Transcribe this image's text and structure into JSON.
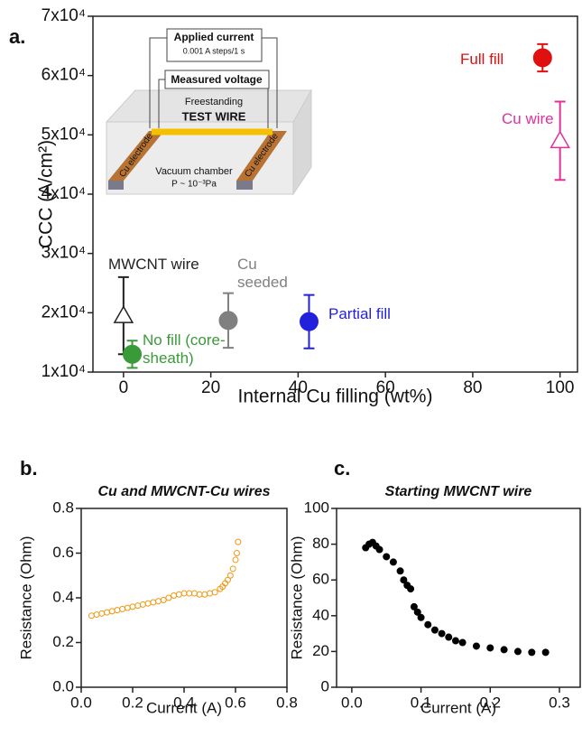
{
  "chart_data": [
    {
      "type": "scatter",
      "panel_label": "a.",
      "x_label": "Internal Cu filling (wt%)",
      "y_label": "CCC (A/cm²)",
      "xlim": [
        -7,
        104
      ],
      "xticks": [
        0,
        20,
        40,
        60,
        80,
        100
      ],
      "ylim": [
        10000,
        70000
      ],
      "yticks": [
        {
          "value": 10000,
          "label": "1x10⁴"
        },
        {
          "value": 20000,
          "label": "2x10⁴"
        },
        {
          "value": 30000,
          "label": "3x10⁴"
        },
        {
          "value": 40000,
          "label": "4x10⁴"
        },
        {
          "value": 50000,
          "label": "5x10⁴"
        },
        {
          "value": 60000,
          "label": "6x10⁴"
        },
        {
          "value": 70000,
          "label": "7x10⁴"
        }
      ],
      "series": [
        {
          "name": "MWCNT wire",
          "color": "#222222",
          "marker": "triangle-open",
          "x": [
            0
          ],
          "values": [
            19500
          ],
          "errors": [
            6500
          ]
        },
        {
          "name": "No fill (core-sheath)",
          "color": "#3a9a3a",
          "marker": "circle",
          "x": [
            2
          ],
          "values": [
            13000
          ],
          "errors": [
            2300
          ]
        },
        {
          "name": "Cu seeded",
          "color": "#808080",
          "marker": "circle",
          "x": [
            24
          ],
          "values": [
            18700
          ],
          "errors": [
            4600
          ]
        },
        {
          "name": "Partial fill",
          "color": "#2222dd",
          "marker": "circle",
          "x": [
            42.5
          ],
          "values": [
            18500
          ],
          "errors": [
            4500
          ]
        },
        {
          "name": "Full fill",
          "color": "#e01010",
          "marker": "circle",
          "x": [
            96
          ],
          "values": [
            63000
          ],
          "errors": [
            2300
          ]
        },
        {
          "name": "Cu wire",
          "color": "#e0309a",
          "marker": "triangle-open",
          "x": [
            100
          ],
          "values": [
            49000
          ],
          "errors": [
            6600
          ]
        }
      ],
      "inset": {
        "applied_current": "Applied current",
        "current_steps": "0.001 A steps/1 s",
        "measured_voltage": "Measured voltage",
        "freestanding": "Freestanding",
        "test_wire": "TEST WIRE",
        "left_electrode": "Cu electrode",
        "right_electrode": "Cu electrode",
        "vacuum_chamber": "Vacuum chamber",
        "pressure": "P ~ 10⁻³Pa"
      }
    },
    {
      "type": "scatter",
      "panel_label": "b.",
      "title": "Cu and MWCNT-Cu wires",
      "x_label": "Current (A)",
      "y_label": "Resistance (Ohm)",
      "xlim": [
        0,
        0.8
      ],
      "xticks": [
        {
          "value": 0,
          "label": "0.0"
        },
        0.2,
        0.4,
        0.6,
        0.8
      ],
      "ylim": [
        0,
        0.8
      ],
      "yticks": [
        {
          "value": 0,
          "label": "0.0"
        },
        0.2,
        0.4,
        0.6,
        0.8
      ],
      "series": [
        {
          "color": "#f0960f",
          "marker": "circle-open",
          "x": [
            0.04,
            0.06,
            0.08,
            0.1,
            0.12,
            0.14,
            0.16,
            0.18,
            0.2,
            0.22,
            0.24,
            0.26,
            0.28,
            0.3,
            0.32,
            0.34,
            0.36,
            0.38,
            0.4,
            0.42,
            0.44,
            0.46,
            0.48,
            0.5,
            0.52,
            0.54,
            0.55,
            0.56,
            0.57,
            0.58,
            0.59,
            0.6,
            0.605,
            0.61
          ],
          "values": [
            0.32,
            0.325,
            0.33,
            0.335,
            0.34,
            0.345,
            0.35,
            0.355,
            0.36,
            0.365,
            0.37,
            0.375,
            0.38,
            0.385,
            0.39,
            0.4,
            0.41,
            0.415,
            0.42,
            0.42,
            0.42,
            0.415,
            0.415,
            0.42,
            0.425,
            0.44,
            0.45,
            0.465,
            0.48,
            0.5,
            0.53,
            0.57,
            0.6,
            0.65
          ]
        }
      ]
    },
    {
      "type": "scatter",
      "panel_label": "c.",
      "title": "Starting MWCNT wire",
      "x_label": "Current (A)",
      "y_label": "Resistance (Ohm)",
      "xlim": [
        -0.022,
        0.33
      ],
      "xticks": [
        {
          "value": 0,
          "label": "0.0"
        },
        0.1,
        0.2,
        0.3
      ],
      "ylim": [
        0,
        100
      ],
      "yticks": [
        0,
        20,
        40,
        60,
        80,
        100
      ],
      "series": [
        {
          "color": "#000000",
          "marker": "circle",
          "x": [
            0.02,
            0.025,
            0.03,
            0.035,
            0.04,
            0.05,
            0.06,
            0.07,
            0.075,
            0.08,
            0.085,
            0.09,
            0.095,
            0.1,
            0.11,
            0.12,
            0.13,
            0.14,
            0.15,
            0.16,
            0.18,
            0.2,
            0.22,
            0.24,
            0.26,
            0.28
          ],
          "values": [
            78,
            80,
            81,
            79,
            77,
            73,
            70,
            65,
            60,
            57,
            55,
            45,
            42,
            39,
            35,
            32,
            30,
            28,
            26,
            25,
            23,
            22,
            21,
            20,
            19.5,
            19.5
          ]
        }
      ]
    }
  ]
}
